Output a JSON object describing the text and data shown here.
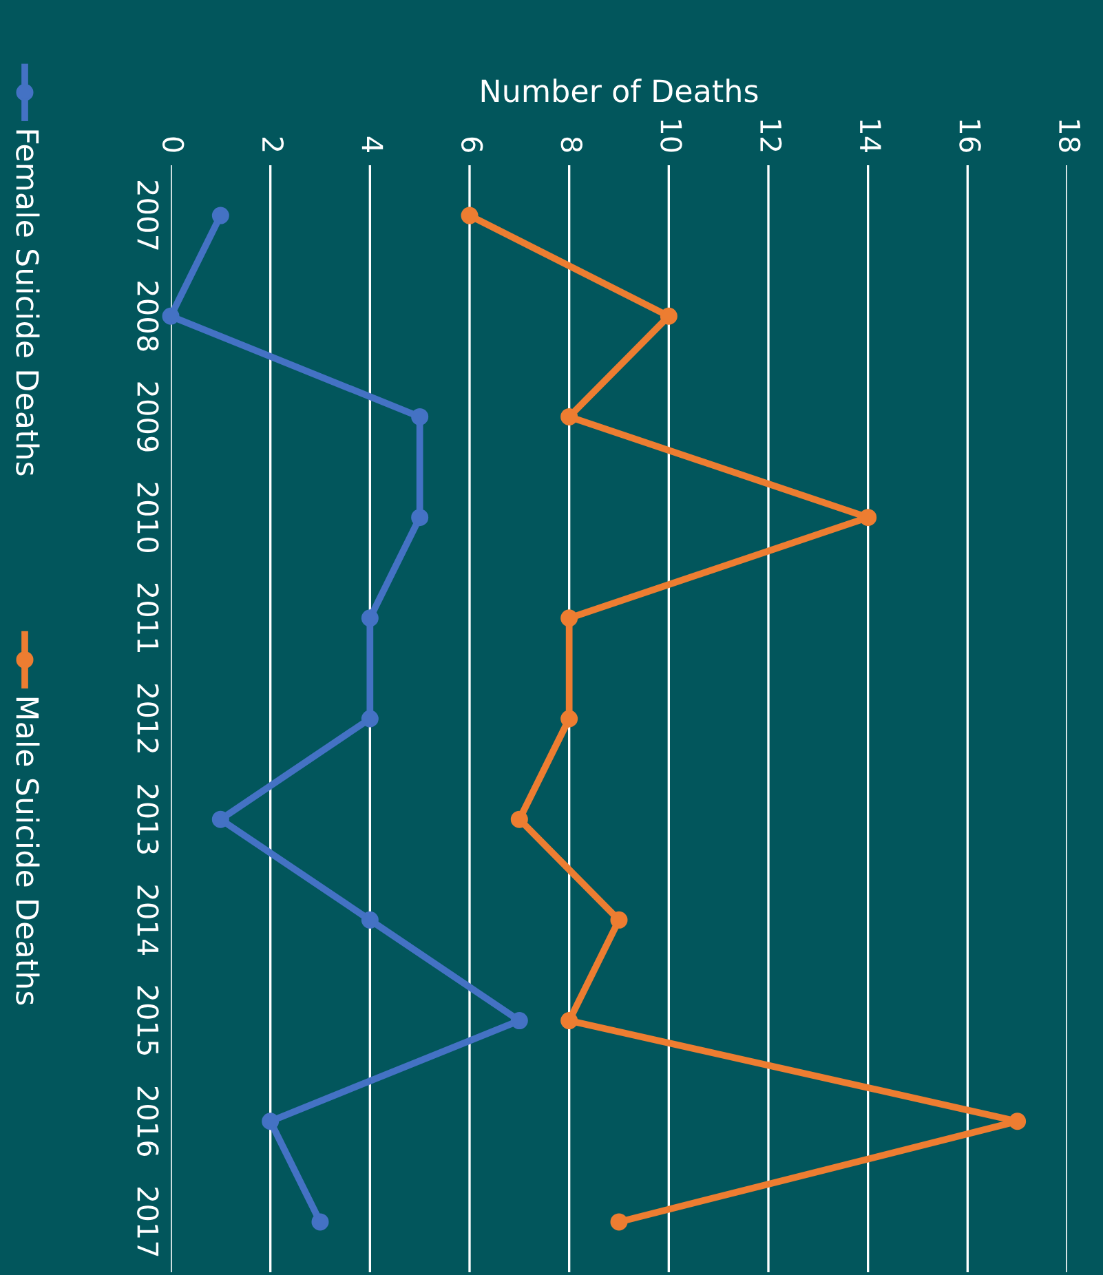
{
  "chart_data": {
    "type": "line",
    "orientation": "horizontal",
    "xlabel": "Number of Deaths",
    "categories": [
      "2007",
      "2008",
      "2009",
      "2010",
      "2011",
      "2012",
      "2013",
      "2014",
      "2015",
      "2016",
      "2017"
    ],
    "series": [
      {
        "name": "Female Suicide Deaths",
        "color": "#4472c4",
        "values": [
          1,
          0,
          5,
          5,
          4,
          4,
          1,
          4,
          7,
          2,
          3
        ]
      },
      {
        "name": "Male Suicide Deaths",
        "color": "#ed7d31",
        "values": [
          6,
          10,
          8,
          14,
          8,
          8,
          7,
          9,
          8,
          17,
          9
        ]
      }
    ],
    "xlim": [
      0,
      18
    ],
    "xticks": [
      0,
      2,
      4,
      6,
      8,
      10,
      12,
      14,
      16,
      18
    ],
    "grid": "x",
    "legend": "left",
    "marker": "circle",
    "line_style": "solid"
  }
}
